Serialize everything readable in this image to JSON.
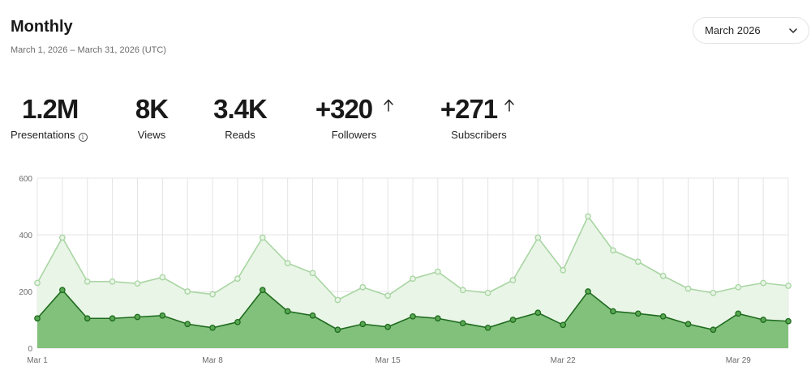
{
  "header": {
    "title": "Monthly",
    "date_range": "March 1, 2026 – March 31, 2026 (UTC)"
  },
  "month_select": {
    "value": "March 2026",
    "icon": "chevron-down-icon"
  },
  "stats": [
    {
      "value": "1.2M",
      "label": "Presentations",
      "info_icon": true
    },
    {
      "value": "8K",
      "label": "Views"
    },
    {
      "value": "3.4K",
      "label": "Reads"
    },
    {
      "value": "+320",
      "label": "Followers",
      "trend_icon": "arrow-up-icon"
    },
    {
      "value": "+271",
      "label": "Subscribers",
      "trend_icon": "arrow-up-icon"
    }
  ],
  "colors": {
    "views_line": "#a8d5a2",
    "views_fill": "#e9f5e7",
    "reads_line": "#1e6b1e",
    "reads_fill": "#82c17c",
    "grid": "#e4e4e4"
  },
  "chart_data": {
    "type": "area",
    "x": [
      1,
      2,
      3,
      4,
      5,
      6,
      7,
      8,
      9,
      10,
      11,
      12,
      13,
      14,
      15,
      16,
      17,
      18,
      19,
      20,
      21,
      22,
      23,
      24,
      25,
      26,
      27,
      28,
      29,
      30,
      31
    ],
    "x_tick_labels": [
      {
        "x": 1,
        "label": "Mar 1"
      },
      {
        "x": 8,
        "label": "Mar 8"
      },
      {
        "x": 15,
        "label": "Mar 15"
      },
      {
        "x": 22,
        "label": "Mar 22"
      },
      {
        "x": 29,
        "label": "Mar 29"
      }
    ],
    "y_ticks": [
      0,
      200,
      400,
      600
    ],
    "ylim": [
      0,
      600
    ],
    "grid": true,
    "series": [
      {
        "values": [
          230,
          390,
          235,
          235,
          228,
          250,
          200,
          190,
          245,
          390,
          300,
          265,
          170,
          215,
          185,
          245,
          270,
          205,
          195,
          240,
          390,
          275,
          465,
          345,
          305,
          255,
          210,
          195,
          215,
          230,
          220
        ]
      },
      {
        "values": [
          105,
          205,
          105,
          105,
          110,
          115,
          85,
          72,
          92,
          205,
          130,
          115,
          65,
          85,
          75,
          112,
          105,
          88,
          72,
          100,
          125,
          82,
          200,
          130,
          122,
          112,
          85,
          65,
          122,
          100,
          95
        ]
      }
    ]
  }
}
